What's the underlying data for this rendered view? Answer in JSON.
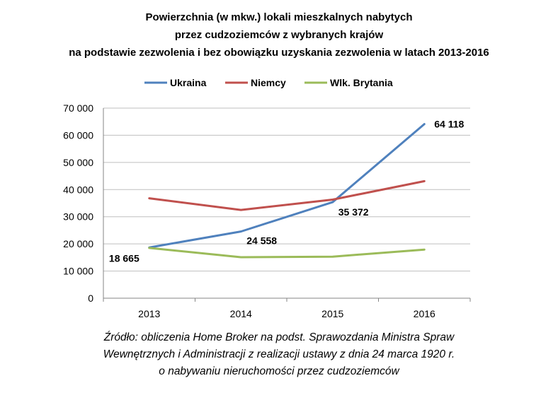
{
  "title": {
    "line1": "Powierzchnia (w mkw.) lokali mieszkalnych nabytych",
    "line2": "przez cudzoziemców z wybranych krajów",
    "line3": "na podstawie zezwolenia i bez obowiązku uzyskania zezwolenia w latach 2013-2016"
  },
  "caption": {
    "line1": "Źródło: obliczenia Home Broker na podst. Sprawozdania Ministra Spraw",
    "line2": "Wewnętrznych i Administracji z realizacji ustawy z dnia 24 marca 1920 r.",
    "line3": "o nabywaniu nieruchomości przez cudzoziemców"
  },
  "chart_data": {
    "type": "line",
    "title": "Powierzchnia (w mkw.) lokali mieszkalnych nabytych przez cudzoziemców z wybranych krajów na podstawie zezwolenia i bez obowiązku uzyskania zezwolenia w latach 2013-2016",
    "xlabel": "",
    "ylabel": "",
    "categories": [
      "2013",
      "2014",
      "2015",
      "2016"
    ],
    "ylim": [
      0,
      70000
    ],
    "yticks": [
      0,
      10000,
      20000,
      30000,
      40000,
      50000,
      60000,
      70000
    ],
    "ytick_labels": [
      "0",
      "10 000",
      "20 000",
      "30 000",
      "40 000",
      "50 000",
      "60 000",
      "70 000"
    ],
    "grid": "horizontal",
    "legend": "top",
    "series": [
      {
        "name": "Ukraina",
        "color": "#4F81BD",
        "values": [
          18665,
          24558,
          35372,
          64118
        ],
        "labels": [
          "18 665",
          "24 558",
          "35 372",
          "64 118"
        ]
      },
      {
        "name": "Niemcy",
        "color": "#C0504D",
        "values": [
          36800,
          32500,
          36300,
          43100
        ],
        "labels": []
      },
      {
        "name": "Wlk. Brytania",
        "color": "#9BBB59",
        "values": [
          18500,
          15100,
          15300,
          17900
        ],
        "labels": []
      }
    ]
  }
}
